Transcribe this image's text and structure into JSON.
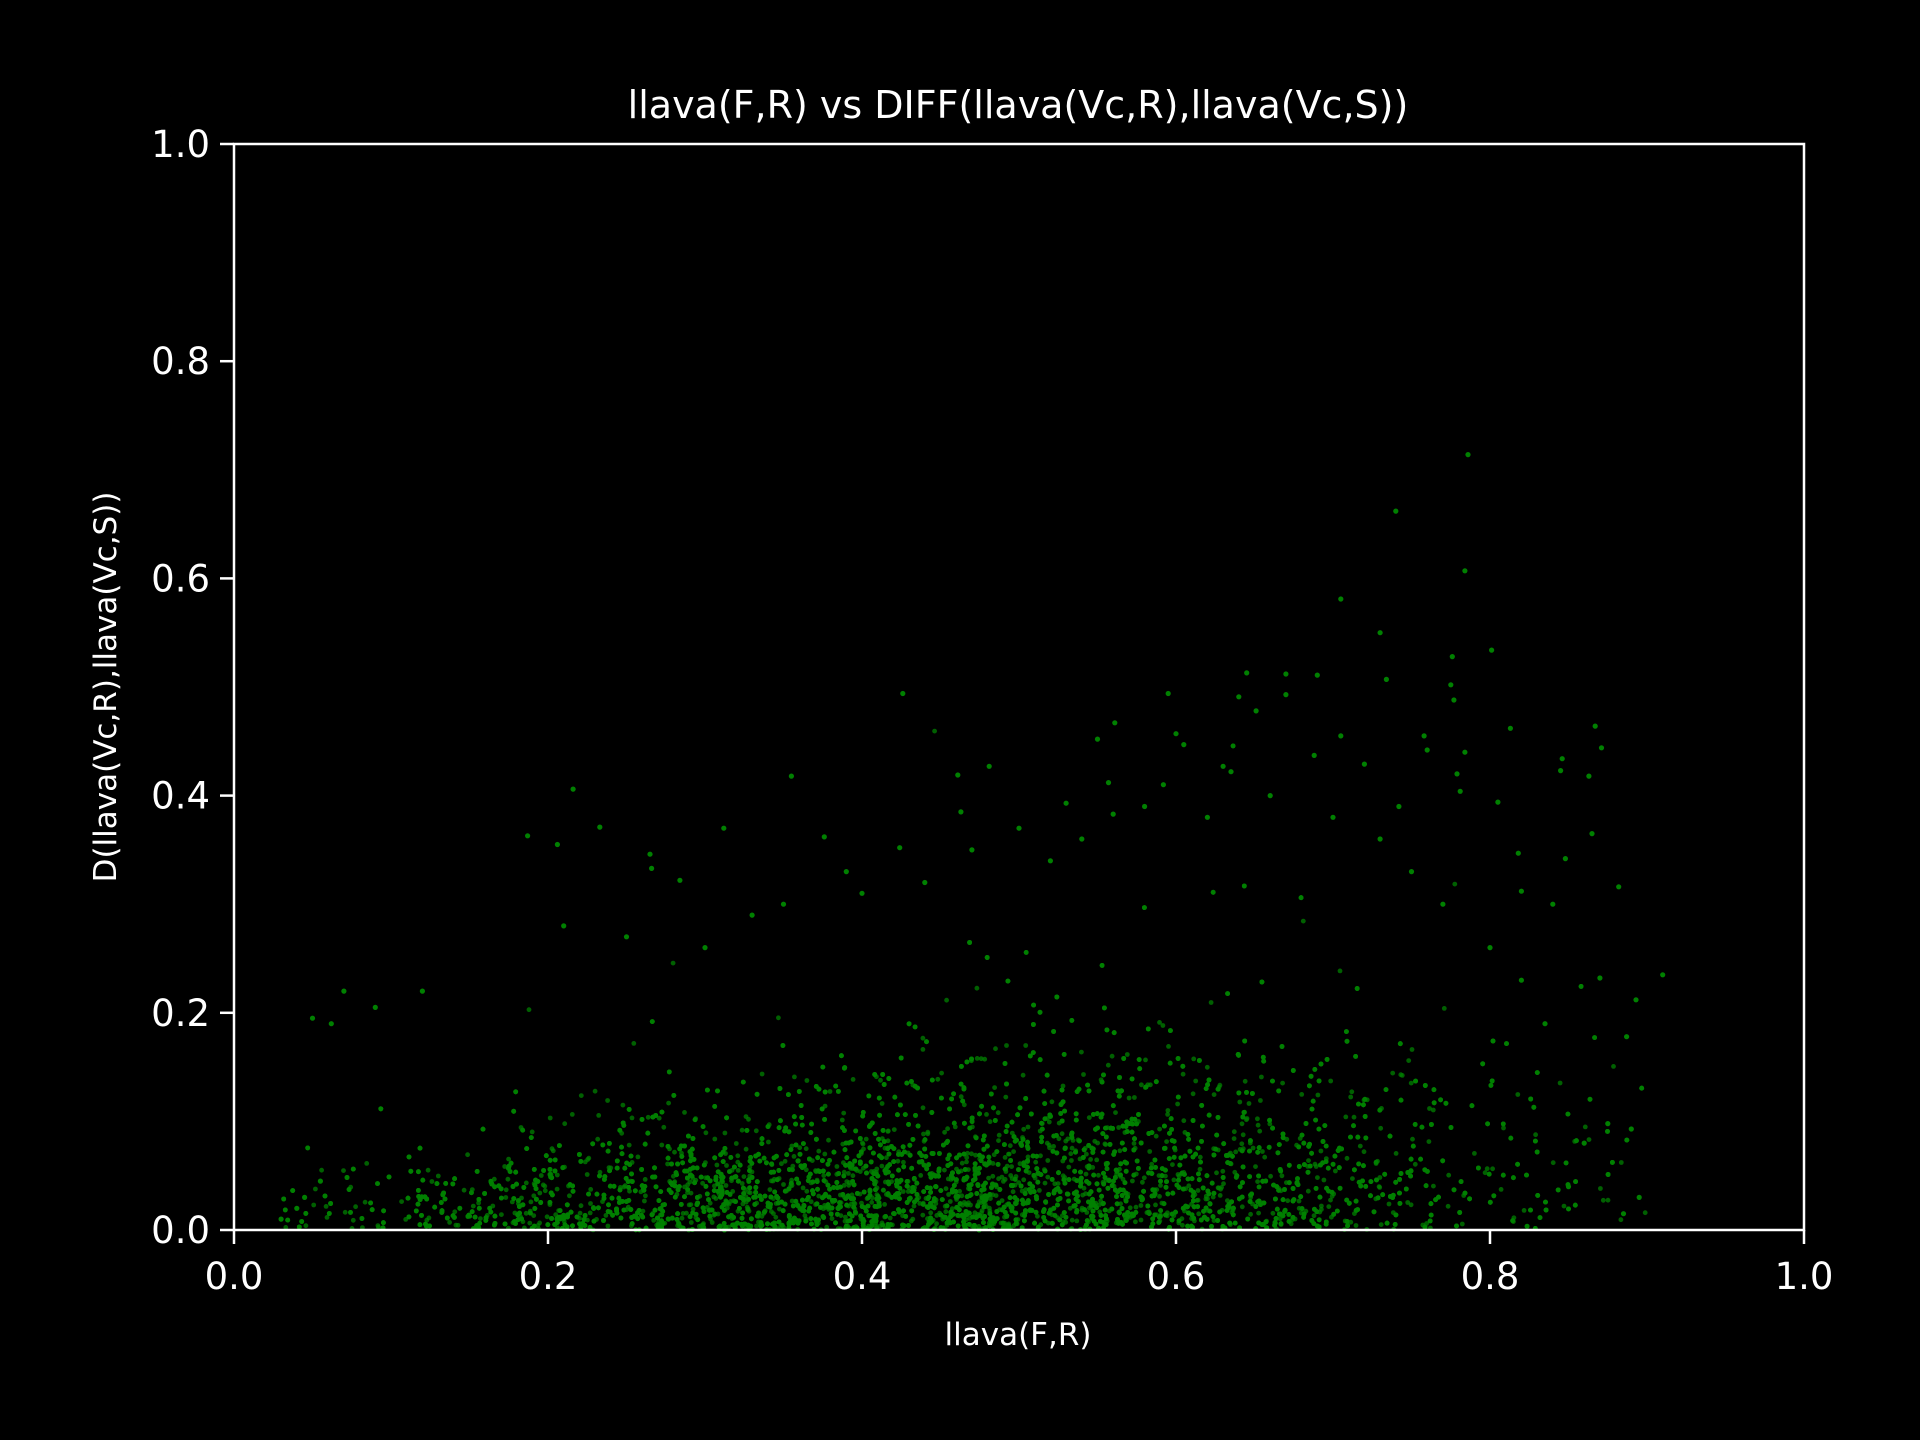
{
  "chart_data": {
    "type": "scatter",
    "title": "llava(F,R) vs DIFF(llava(Vc,R),llava(Vc,S))",
    "xlabel": "llava(F,R)",
    "ylabel": "D(llava(Vc,R),llava(Vc,S))",
    "xlim": [
      0.0,
      1.0
    ],
    "ylim": [
      0.0,
      1.0
    ],
    "x_ticks": [
      0.0,
      0.2,
      0.4,
      0.6,
      0.8,
      1.0
    ],
    "y_ticks": [
      0.0,
      0.2,
      0.4,
      0.6,
      0.8,
      1.0
    ],
    "x_tick_labels": [
      "0.0",
      "0.2",
      "0.4",
      "0.6",
      "0.8",
      "1.0"
    ],
    "y_tick_labels": [
      "0.0",
      "0.2",
      "0.4",
      "0.6",
      "0.8",
      "1.0"
    ],
    "grid": false,
    "background_color": "#000000",
    "axis_color": "#ffffff",
    "point_color": "#008000",
    "series": [
      {
        "points": [
          [
            0.786,
            0.714
          ],
          [
            0.74,
            0.662
          ],
          [
            0.784,
            0.607
          ],
          [
            0.705,
            0.581
          ],
          [
            0.73,
            0.55
          ],
          [
            0.801,
            0.534
          ],
          [
            0.776,
            0.528
          ],
          [
            0.645,
            0.513
          ],
          [
            0.67,
            0.512
          ],
          [
            0.69,
            0.511
          ],
          [
            0.734,
            0.507
          ],
          [
            0.775,
            0.502
          ],
          [
            0.426,
            0.494
          ],
          [
            0.595,
            0.494
          ],
          [
            0.67,
            0.493
          ],
          [
            0.64,
            0.491
          ],
          [
            0.777,
            0.488
          ],
          [
            0.651,
            0.478
          ],
          [
            0.561,
            0.467
          ],
          [
            0.867,
            0.464
          ],
          [
            0.813,
            0.462
          ],
          [
            0.6,
            0.457
          ],
          [
            0.705,
            0.455
          ],
          [
            0.758,
            0.455
          ],
          [
            0.55,
            0.452
          ],
          [
            0.605,
            0.447
          ],
          [
            0.871,
            0.444
          ],
          [
            0.76,
            0.442
          ],
          [
            0.784,
            0.44
          ],
          [
            0.688,
            0.437
          ],
          [
            0.846,
            0.434
          ],
          [
            0.72,
            0.429
          ],
          [
            0.63,
            0.427
          ],
          [
            0.481,
            0.427
          ],
          [
            0.845,
            0.423
          ],
          [
            0.635,
            0.422
          ],
          [
            0.779,
            0.42
          ],
          [
            0.461,
            0.419
          ],
          [
            0.355,
            0.418
          ],
          [
            0.863,
            0.418
          ],
          [
            0.557,
            0.412
          ],
          [
            0.592,
            0.41
          ],
          [
            0.216,
            0.406
          ],
          [
            0.781,
            0.404
          ],
          [
            0.805,
            0.394
          ],
          [
            0.53,
            0.393
          ],
          [
            0.742,
            0.39
          ],
          [
            0.463,
            0.385
          ],
          [
            0.56,
            0.383
          ],
          [
            0.233,
            0.371
          ],
          [
            0.312,
            0.37
          ],
          [
            0.865,
            0.365
          ],
          [
            0.187,
            0.363
          ],
          [
            0.376,
            0.362
          ],
          [
            0.206,
            0.355
          ],
          [
            0.424,
            0.352
          ],
          [
            0.265,
            0.346
          ],
          [
            0.818,
            0.347
          ],
          [
            0.848,
            0.342
          ],
          [
            0.266,
            0.333
          ],
          [
            0.284,
            0.322
          ],
          [
            0.882,
            0.316
          ],
          [
            0.82,
            0.312
          ],
          [
            0.4,
            0.31
          ],
          [
            0.84,
            0.3
          ],
          [
            0.12,
            0.22
          ],
          [
            0.07,
            0.22
          ],
          [
            0.09,
            0.205
          ],
          [
            0.05,
            0.195
          ],
          [
            0.062,
            0.19
          ],
          [
            0.91,
            0.235
          ],
          [
            0.893,
            0.212
          ],
          [
            0.87,
            0.232
          ],
          [
            0.887,
            0.178
          ],
          [
            0.835,
            0.19
          ],
          [
            0.89,
            0.093
          ],
          [
            0.875,
            0.098
          ],
          [
            0.895,
            0.03
          ],
          [
            0.885,
            0.015
          ],
          [
            0.03,
            0.01
          ],
          [
            0.045,
            0.03
          ],
          [
            0.055,
            0.045
          ],
          [
            0.04,
            0.02
          ],
          [
            0.85,
            0.04
          ],
          [
            0.86,
            0.08
          ],
          [
            0.21,
            0.28
          ],
          [
            0.25,
            0.27
          ],
          [
            0.3,
            0.26
          ],
          [
            0.33,
            0.29
          ],
          [
            0.35,
            0.3
          ],
          [
            0.39,
            0.33
          ],
          [
            0.44,
            0.32
          ],
          [
            0.47,
            0.35
          ],
          [
            0.5,
            0.37
          ],
          [
            0.52,
            0.34
          ],
          [
            0.54,
            0.36
          ],
          [
            0.58,
            0.39
          ],
          [
            0.62,
            0.38
          ],
          [
            0.66,
            0.4
          ],
          [
            0.7,
            0.38
          ],
          [
            0.73,
            0.36
          ],
          [
            0.75,
            0.33
          ],
          [
            0.77,
            0.3
          ],
          [
            0.8,
            0.26
          ],
          [
            0.82,
            0.23
          ]
        ]
      }
    ]
  }
}
